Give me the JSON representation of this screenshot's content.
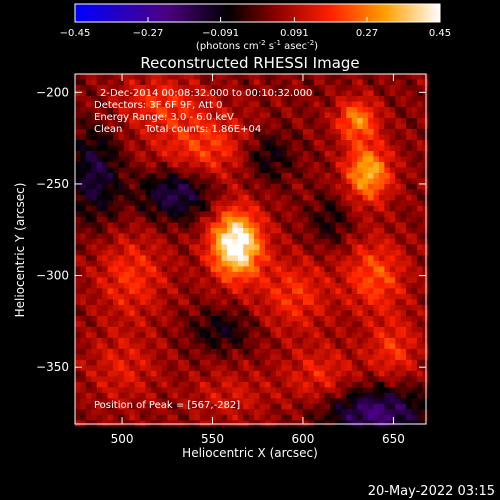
{
  "chart_data": {
    "type": "heatmap",
    "title": "Reconstructed RHESSI Image",
    "xlabel": "Heliocentric X (arcsec)",
    "ylabel": "Heliocentric Y (arcsec)",
    "xlim": [
      474,
      668
    ],
    "ylim": [
      -381,
      -190
    ],
    "x_ticks": [
      500,
      550,
      600,
      650
    ],
    "y_ticks": [
      -200,
      -250,
      -300,
      -350
    ],
    "colorbar": {
      "label_prefix": "(photons cm",
      "label_sup1": "-2",
      "label_mid1": " s",
      "label_sup2": "-1",
      "label_mid2": " asec",
      "label_sup3": "-2",
      "label_suffix": ")",
      "range": [
        -0.45,
        0.45
      ],
      "ticks": [
        "-0.45",
        "-0.27",
        "-0.091",
        "0.091",
        "0.27",
        "0.45"
      ],
      "tick_values": [
        -0.45,
        -0.27,
        -0.091,
        0.091,
        0.27,
        0.45
      ]
    },
    "annotations": {
      "time_range": "2-Dec-2014 00:08:32.000 to 00:10:32.000",
      "detectors": "Detectors: 3F 6F 9F, Att 0",
      "energy": "Energy Range: 3.0 - 6.0 keV",
      "clean_label": "Clean",
      "total_counts": "Total counts: 1.86E+04",
      "peak": "Position of Peak = [567,-282]"
    },
    "sources": [
      {
        "x": 563,
        "y": -283,
        "peak": 0.45,
        "sigma_x": 10,
        "sigma_y": 13
      },
      {
        "x": 636,
        "y": -244,
        "peak": 0.3,
        "sigma_x": 9,
        "sigma_y": 11
      },
      {
        "x": 630,
        "y": -215,
        "peak": 0.24,
        "sigma_x": 8,
        "sigma_y": 8
      },
      {
        "x": 545,
        "y": -230,
        "peak": 0.16,
        "sigma_x": 20,
        "sigma_y": 14
      },
      {
        "x": 505,
        "y": -300,
        "peak": 0.14,
        "sigma_x": 14,
        "sigma_y": 16
      },
      {
        "x": 520,
        "y": -205,
        "peak": 0.13,
        "sigma_x": 16,
        "sigma_y": 10
      },
      {
        "x": 595,
        "y": -310,
        "peak": 0.14,
        "sigma_x": 14,
        "sigma_y": 14
      },
      {
        "x": 640,
        "y": -300,
        "peak": 0.18,
        "sigma_x": 12,
        "sigma_y": 14
      },
      {
        "x": 650,
        "y": -340,
        "peak": 0.14,
        "sigma_x": 10,
        "sigma_y": 12
      },
      {
        "x": 500,
        "y": -350,
        "peak": 0.1,
        "sigma_x": 14,
        "sigma_y": 14
      },
      {
        "x": 610,
        "y": -355,
        "peak": 0.12,
        "sigma_x": 14,
        "sigma_y": 12
      },
      {
        "x": 560,
        "y": -365,
        "peak": 0.08,
        "sigma_x": 16,
        "sigma_y": 10
      }
    ],
    "negative_regions": [
      {
        "x": 530,
        "y": -255,
        "value": -0.22,
        "sigma_x": 14,
        "sigma_y": 10
      },
      {
        "x": 485,
        "y": -245,
        "value": -0.18,
        "sigma_x": 10,
        "sigma_y": 18
      },
      {
        "x": 580,
        "y": -235,
        "value": -0.14,
        "sigma_x": 10,
        "sigma_y": 10
      },
      {
        "x": 640,
        "y": -375,
        "value": -0.25,
        "sigma_x": 20,
        "sigma_y": 10
      },
      {
        "x": 555,
        "y": -330,
        "value": -0.12,
        "sigma_x": 12,
        "sigma_y": 8
      },
      {
        "x": 615,
        "y": -270,
        "value": -0.1,
        "sigma_x": 8,
        "sigma_y": 10
      }
    ]
  },
  "footer": {
    "timestamp": "20-May-2022 03:15"
  }
}
